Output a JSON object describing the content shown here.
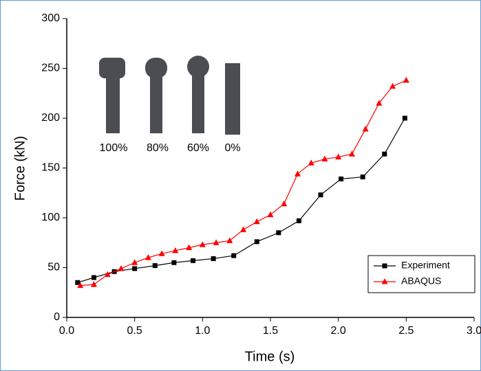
{
  "chart_data": {
    "type": "line",
    "x_label": "Time (s)",
    "y_label": "Force (kN)",
    "xlim": [
      0,
      3
    ],
    "ylim": [
      0,
      300
    ],
    "xticks": [
      {
        "value": 0,
        "label": "0.0"
      },
      0.5,
      {
        "value": 1,
        "label": "1.0"
      },
      1.5,
      {
        "value": 2,
        "label": "2.0"
      },
      2.5,
      {
        "value": 3,
        "label": "3.0"
      }
    ],
    "yticks": [
      0,
      50,
      100,
      150,
      200,
      250,
      300
    ],
    "legend": "lower right",
    "annotations": [
      "100%",
      "80%",
      "60%",
      "0%"
    ],
    "series": [
      {
        "name": "Experiment",
        "color": "#000000",
        "marker": "square",
        "x": [
          0.08,
          0.2,
          0.35,
          0.5,
          0.65,
          0.79,
          0.93,
          1.08,
          1.23,
          1.4,
          1.56,
          1.71,
          1.87,
          2.02,
          2.18,
          2.34,
          2.49
        ],
        "values": [
          35,
          40,
          46,
          49,
          52,
          55,
          57,
          59,
          62,
          76,
          85,
          97,
          123,
          139,
          141,
          164,
          200
        ]
      },
      {
        "name": "ABAQUS",
        "color": "#ff0000",
        "marker": "triangle",
        "x": [
          0.1,
          0.2,
          0.3,
          0.4,
          0.5,
          0.6,
          0.7,
          0.8,
          0.9,
          1.0,
          1.1,
          1.2,
          1.3,
          1.4,
          1.5,
          1.6,
          1.7,
          1.8,
          1.9,
          2.0,
          2.1,
          2.2,
          2.3,
          2.4,
          2.5
        ],
        "values": [
          32,
          33,
          43,
          49,
          55,
          60,
          64,
          67,
          70,
          73,
          75,
          77,
          88,
          96,
          103,
          114,
          144,
          155,
          159,
          161,
          164,
          189,
          215,
          232,
          238
        ]
      }
    ]
  }
}
